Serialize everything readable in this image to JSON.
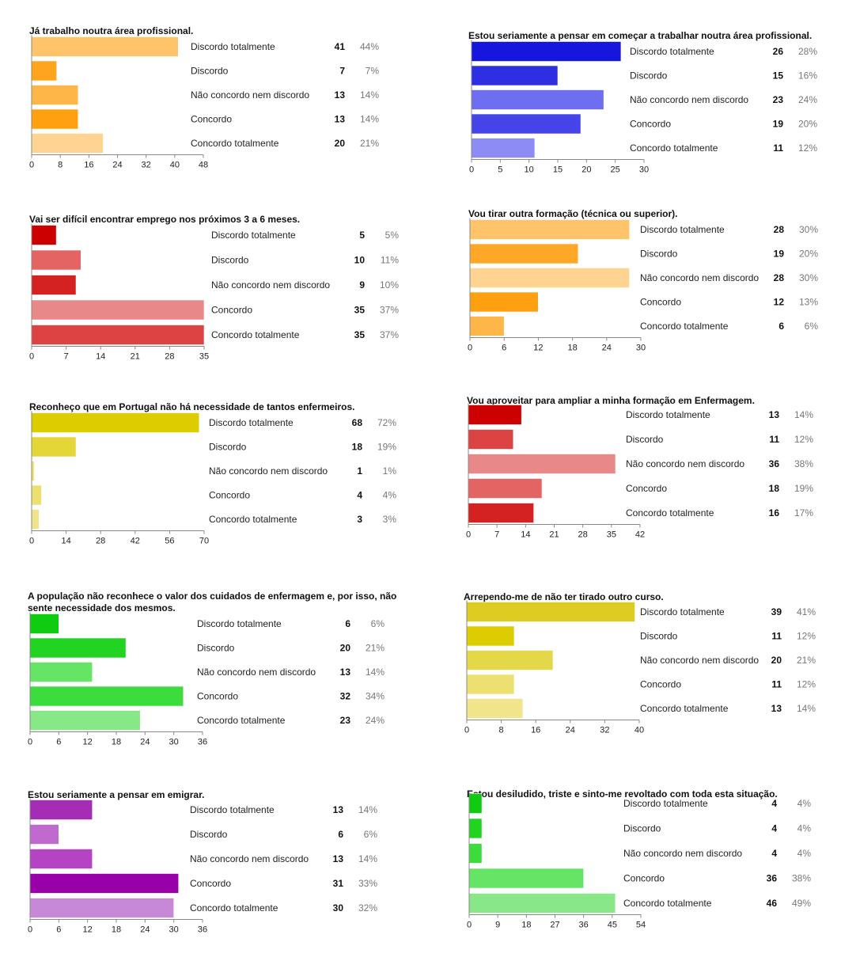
{
  "chart_data": [
    {
      "type": "bar",
      "title": "Já trabalho noutra área profissional.",
      "categories": [
        "Discordo totalmente",
        "Discordo",
        "Não concordo nem discordo",
        "Concordo",
        "Concordo totalmente"
      ],
      "values": [
        41,
        7,
        13,
        13,
        20
      ],
      "percents": [
        "44%",
        "7%",
        "14%",
        "14%",
        "21%"
      ],
      "xlim": [
        0,
        48
      ],
      "ticks": [
        "0",
        "8",
        "16",
        "24",
        "32",
        "40",
        "48"
      ],
      "colors": [
        "#ffc46a",
        "#ffa41c",
        "#ffb648",
        "#ffa010",
        "#ffd390"
      ]
    },
    {
      "type": "bar",
      "title": "Estou seriamente a pensar em começar a trabalhar noutra área profissional.",
      "categories": [
        "Discordo totalmente",
        "Discordo",
        "Não concordo nem discordo",
        "Concordo",
        "Concordo totalmente"
      ],
      "values": [
        26,
        15,
        23,
        19,
        11
      ],
      "percents": [
        "28%",
        "16%",
        "24%",
        "20%",
        "12%"
      ],
      "xlim": [
        0,
        30
      ],
      "ticks": [
        "0",
        "5",
        "10",
        "15",
        "20",
        "25",
        "30"
      ],
      "colors": [
        "#1616dc",
        "#2e2ee4",
        "#6e6ef0",
        "#4444e8",
        "#8c8cf4"
      ]
    },
    {
      "type": "bar",
      "title": "Vai ser difícil encontrar emprego nos próximos 3 a 6 meses.",
      "categories": [
        "Discordo totalmente",
        "Discordo",
        "Não concordo nem discordo",
        "Concordo",
        "Concordo totalmente"
      ],
      "values": [
        5,
        10,
        9,
        35,
        35
      ],
      "percents": [
        "5%",
        "11%",
        "10%",
        "37%",
        "37%"
      ],
      "xlim": [
        0,
        35
      ],
      "ticks": [
        "0",
        "7",
        "14",
        "21",
        "28",
        "35"
      ],
      "colors": [
        "#cc0000",
        "#e46464",
        "#d42222",
        "#e88888",
        "#dc4444"
      ]
    },
    {
      "type": "bar",
      "title": "Vou tirar outra formação (técnica ou superior).",
      "categories": [
        "Discordo totalmente",
        "Discordo",
        "Não concordo nem discordo",
        "Concordo",
        "Concordo totalmente"
      ],
      "values": [
        28,
        19,
        28,
        12,
        6
      ],
      "percents": [
        "30%",
        "20%",
        "30%",
        "13%",
        "6%"
      ],
      "xlim": [
        0,
        30
      ],
      "ticks": [
        "0",
        "6",
        "12",
        "18",
        "24",
        "30"
      ],
      "colors": [
        "#ffc46a",
        "#ffa828",
        "#ffd490",
        "#ffa010",
        "#ffb648"
      ]
    },
    {
      "type": "bar",
      "title": "Reconheço que em Portugal não há necessidade de tantos enfermeiros.",
      "categories": [
        "Discordo totalmente",
        "Discordo",
        "Não concordo nem discordo",
        "Concordo",
        "Concordo totalmente"
      ],
      "values": [
        68,
        18,
        1,
        4,
        3
      ],
      "percents": [
        "72%",
        "19%",
        "1%",
        "4%",
        "3%"
      ],
      "xlim": [
        0,
        70
      ],
      "ticks": [
        "0",
        "14",
        "28",
        "42",
        "56",
        "70"
      ],
      "colors": [
        "#dccc00",
        "#e4d636",
        "#ecdf6a",
        "#ece070",
        "#f0e488"
      ]
    },
    {
      "type": "bar",
      "title": "Vou aproveitar para ampliar a minha formação em Enfermagem.",
      "categories": [
        "Discordo totalmente",
        "Discordo",
        "Não concordo nem discordo",
        "Concordo",
        "Concordo totalmente"
      ],
      "values": [
        13,
        11,
        36,
        18,
        16
      ],
      "percents": [
        "14%",
        "12%",
        "38%",
        "19%",
        "17%"
      ],
      "xlim": [
        0,
        42
      ],
      "ticks": [
        "0",
        "7",
        "14",
        "21",
        "28",
        "35",
        "42"
      ],
      "colors": [
        "#cc0000",
        "#dc4444",
        "#e88888",
        "#e46464",
        "#d42222"
      ]
    },
    {
      "type": "bar",
      "title": "A população não reconhece o valor dos cuidados de enfermagem e, por isso, não sente necessidade dos mesmos.",
      "title_lines": [
        "A população não reconhece o valor dos cuidados de enfermagem e, por isso, não",
        "sente necessidade dos mesmos."
      ],
      "categories": [
        "Discordo totalmente",
        "Discordo",
        "Não concordo nem discordo",
        "Concordo",
        "Concordo totalmente"
      ],
      "values": [
        6,
        20,
        13,
        32,
        23
      ],
      "percents": [
        "6%",
        "21%",
        "14%",
        "34%",
        "24%"
      ],
      "xlim": [
        0,
        36
      ],
      "ticks": [
        "0",
        "6",
        "12",
        "18",
        "24",
        "30",
        "36"
      ],
      "colors": [
        "#10cc10",
        "#22d422",
        "#66e466",
        "#3cdc3c",
        "#88e888"
      ]
    },
    {
      "type": "bar",
      "title": "Arrependo-me de não ter tirado outro curso.",
      "categories": [
        "Discordo totalmente",
        "Discordo",
        "Não concordo nem discordo",
        "Concordo",
        "Concordo totalmente"
      ],
      "values": [
        39,
        11,
        20,
        11,
        13
      ],
      "percents": [
        "41%",
        "12%",
        "21%",
        "12%",
        "14%"
      ],
      "xlim": [
        0,
        40
      ],
      "ticks": [
        "0",
        "8",
        "16",
        "24",
        "32",
        "40"
      ],
      "colors": [
        "#ddcc22",
        "#dccc00",
        "#e4d848",
        "#ece070",
        "#f0e48c"
      ]
    },
    {
      "type": "bar",
      "title": "Estou seriamente a pensar em emigrar.",
      "categories": [
        "Discordo totalmente",
        "Discordo",
        "Não concordo nem discordo",
        "Concordo",
        "Concordo totalmente"
      ],
      "values": [
        13,
        6,
        13,
        31,
        30
      ],
      "percents": [
        "14%",
        "6%",
        "14%",
        "33%",
        "32%"
      ],
      "xlim": [
        0,
        36
      ],
      "ticks": [
        "0",
        "6",
        "12",
        "18",
        "24",
        "30",
        "36"
      ],
      "colors": [
        "#a52cb4",
        "#c06ad0",
        "#b444c4",
        "#9800a8",
        "#c888d8"
      ]
    },
    {
      "type": "bar",
      "title": "Estou desiludido, triste e sinto-me revoltado com toda esta situação.",
      "categories": [
        "Discordo totalmente",
        "Discordo",
        "Não concordo nem discordo",
        "Concordo",
        "Concordo totalmente"
      ],
      "values": [
        4,
        4,
        4,
        36,
        46
      ],
      "percents": [
        "4%",
        "4%",
        "4%",
        "38%",
        "49%"
      ],
      "xlim": [
        0,
        54
      ],
      "ticks": [
        "0",
        "9",
        "18",
        "27",
        "36",
        "45",
        "54"
      ],
      "colors": [
        "#10cc10",
        "#22d422",
        "#3cdc3c",
        "#66e466",
        "#88e888"
      ]
    }
  ]
}
